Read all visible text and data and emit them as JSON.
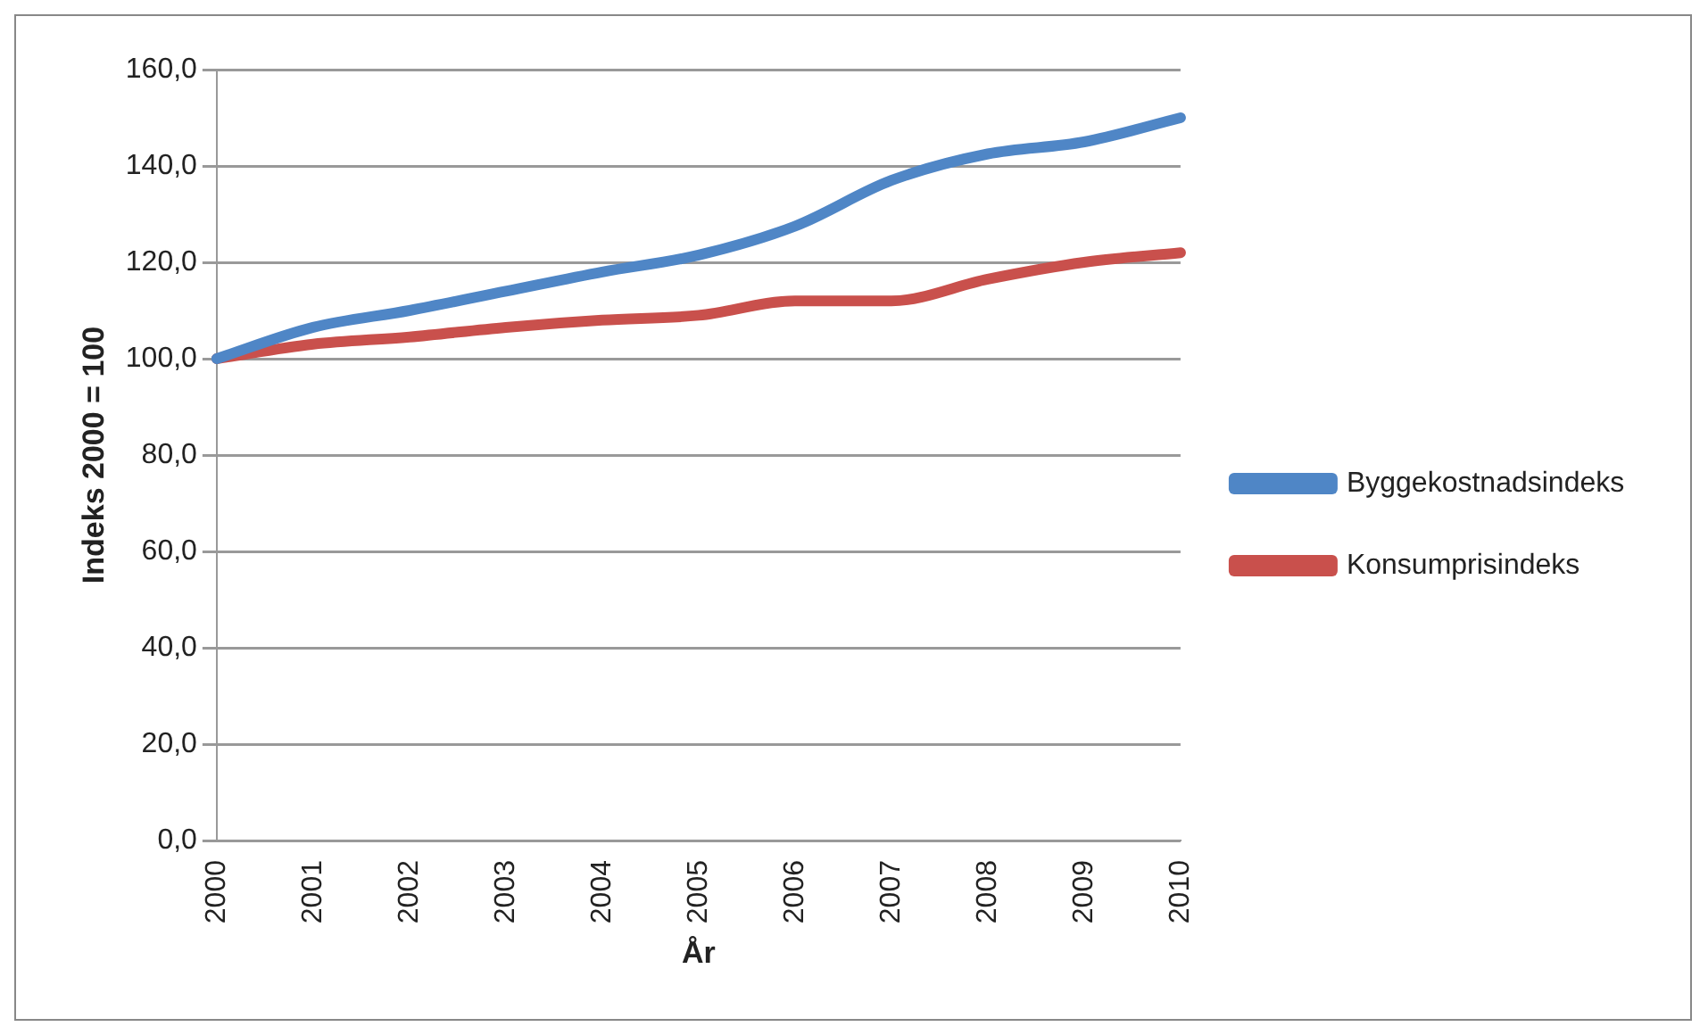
{
  "chart_data": {
    "type": "line",
    "xlabel": "År",
    "ylabel": "Indeks 2000 = 100",
    "categories": [
      "2000",
      "2001",
      "2002",
      "2003",
      "2004",
      "2005",
      "2006",
      "2007",
      "2008",
      "2009",
      "2010"
    ],
    "series": [
      {
        "name": "Byggekostnadsindeks",
        "color": "#4f86c6",
        "values": [
          100,
          106.5,
          110,
          114,
          118,
          121.5,
          127.5,
          137,
          142.5,
          145,
          150
        ]
      },
      {
        "name": "Konsumprisindeks",
        "color": "#c9504c",
        "values": [
          100,
          103,
          104.5,
          106.5,
          108,
          109,
          112,
          112,
          116.5,
          120,
          122
        ]
      }
    ],
    "ylim": [
      0,
      160
    ],
    "yticks": [
      {
        "value": 0,
        "label": "0,0"
      },
      {
        "value": 20,
        "label": "20,0"
      },
      {
        "value": 40,
        "label": "40,0"
      },
      {
        "value": 60,
        "label": "60,0"
      },
      {
        "value": 80,
        "label": "80,0"
      },
      {
        "value": 100,
        "label": "100,0"
      },
      {
        "value": 120,
        "label": "120,0"
      },
      {
        "value": 140,
        "label": "140,0"
      },
      {
        "value": 160,
        "label": "160,0"
      }
    ],
    "grid": "y",
    "legend": "right",
    "marker": "none",
    "line_style": "solid"
  }
}
